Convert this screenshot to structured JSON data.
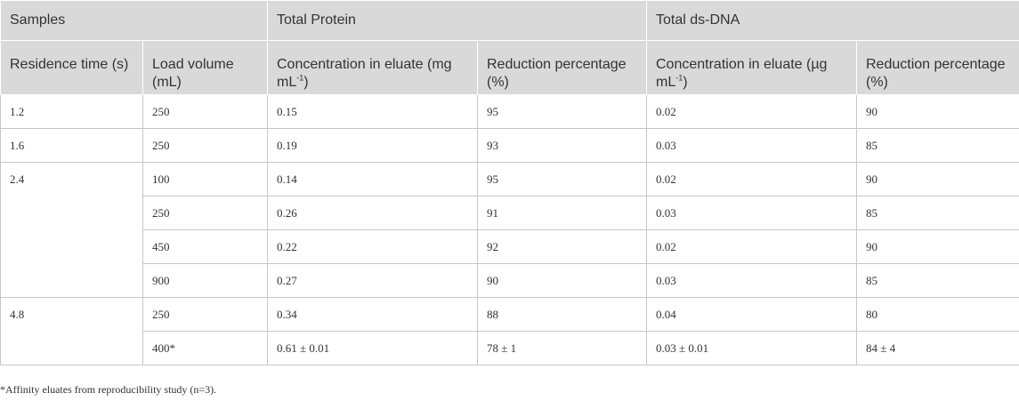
{
  "header": {
    "samples": "Samples",
    "total_protein": "Total Protein",
    "total_dsdna": "Total ds-DNA",
    "residence_time": "Residence time (s)",
    "load_volume": "Load volume (mL)",
    "protein_conc": "Concentration in eluate (mg mL",
    "protein_conc_sup": "-1",
    "protein_conc_close": ")",
    "protein_reduction": "Reduction percentage (%)",
    "dna_conc": "Concentration in eluate (µg mL",
    "dna_conc_sup": "-1",
    "dna_conc_close": ")",
    "dna_reduction": "Reduction percentage (%)"
  },
  "rows": [
    {
      "residence": "1.2",
      "load": "250",
      "protein_conc": "0.15",
      "protein_red": "95",
      "dna_conc": "0.02",
      "dna_red": "90"
    },
    {
      "residence": "1.6",
      "load": "250",
      "protein_conc": "0.19",
      "protein_red": "93",
      "dna_conc": "0.03",
      "dna_red": "85"
    },
    {
      "residence": "2.4",
      "load": "100",
      "protein_conc": "0.14",
      "protein_red": "95",
      "dna_conc": "0.02",
      "dna_red": "90"
    },
    {
      "residence": "",
      "load": "250",
      "protein_conc": "0.26",
      "protein_red": "91",
      "dna_conc": "0.03",
      "dna_red": "85"
    },
    {
      "residence": "",
      "load": "450",
      "protein_conc": "0.22",
      "protein_red": "92",
      "dna_conc": "0.02",
      "dna_red": "90"
    },
    {
      "residence": "",
      "load": "900",
      "protein_conc": "0.27",
      "protein_red": "90",
      "dna_conc": "0.03",
      "dna_red": "85"
    },
    {
      "residence": "4.8",
      "load": "250",
      "protein_conc": "0.34",
      "protein_red": "88",
      "dna_conc": "0.04",
      "dna_red": "80"
    },
    {
      "residence": "",
      "load": "400*",
      "protein_conc": "0.61 ± 0.01",
      "protein_red": "78 ± 1",
      "dna_conc": "0.03 ± 0.01",
      "dna_red": "84 ± 4"
    }
  ],
  "footnote": "*Affinity eluates from reproducibility study (n=3)."
}
